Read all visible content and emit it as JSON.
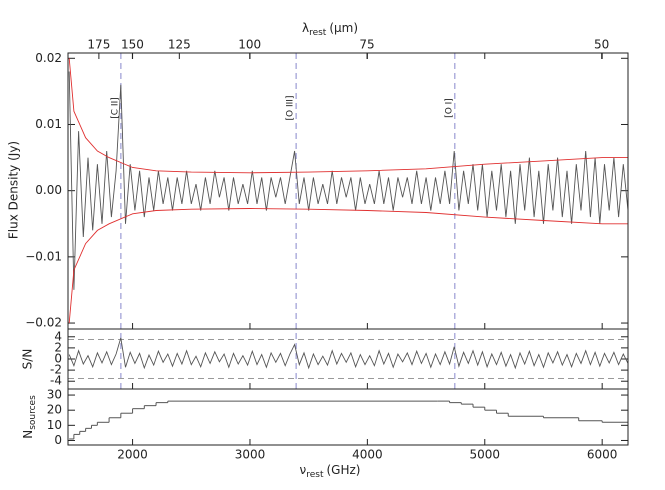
{
  "chart_data": {
    "type": "line",
    "xlim": [
      1450,
      6220
    ],
    "xticks": [
      2000,
      3000,
      4000,
      5000,
      6000
    ],
    "x2ticks": [
      {
        "value": 1713.1,
        "label": "175"
      },
      {
        "value": 1998.6,
        "label": "150"
      },
      {
        "value": 2398.3,
        "label": "125"
      },
      {
        "value": 2997.9,
        "label": "100"
      },
      {
        "value": 3997.2,
        "label": "75"
      },
      {
        "value": 5995.8,
        "label": "50"
      }
    ],
    "xlabel": {
      "symbol": "ν",
      "sub": "rest",
      "unit": "(GHz)"
    },
    "x2label": {
      "symbol": "λ",
      "sub": "rest",
      "unit": "(μm)"
    },
    "x": [
      1460,
      1500,
      1540,
      1580,
      1620,
      1660,
      1700,
      1740,
      1780,
      1820,
      1860,
      1900,
      1940,
      1980,
      2020,
      2060,
      2100,
      2140,
      2180,
      2220,
      2260,
      2300,
      2340,
      2380,
      2420,
      2460,
      2500,
      2540,
      2580,
      2620,
      2660,
      2700,
      2740,
      2780,
      2820,
      2860,
      2900,
      2940,
      2980,
      3020,
      3060,
      3100,
      3140,
      3180,
      3220,
      3260,
      3300,
      3340,
      3380,
      3420,
      3460,
      3500,
      3540,
      3580,
      3620,
      3660,
      3700,
      3740,
      3780,
      3820,
      3860,
      3900,
      3940,
      3980,
      4020,
      4060,
      4100,
      4140,
      4180,
      4220,
      4260,
      4300,
      4340,
      4380,
      4420,
      4460,
      4500,
      4540,
      4580,
      4620,
      4660,
      4700,
      4740,
      4780,
      4820,
      4860,
      4900,
      4940,
      4980,
      5020,
      5060,
      5100,
      5140,
      5180,
      5220,
      5260,
      5300,
      5340,
      5380,
      5420,
      5460,
      5500,
      5540,
      5580,
      5620,
      5660,
      5700,
      5740,
      5780,
      5820,
      5860,
      5900,
      5940,
      5980,
      6020,
      6060,
      6100,
      6140,
      6180,
      6220
    ],
    "flux": {
      "ylabel": "Flux Density (Jy)",
      "ylim": [
        -0.0209,
        0.0208
      ],
      "yticks": [
        {
          "value": -0.02,
          "label": "−0.02"
        },
        {
          "value": -0.01,
          "label": "−0.01"
        },
        {
          "value": 0,
          "label": "0.00"
        },
        {
          "value": 0.01,
          "label": "0.01"
        },
        {
          "value": 0.02,
          "label": "0.02"
        }
      ],
      "color": "#555555",
      "values": [
        0.018,
        -0.015,
        0.009,
        -0.007,
        0.005,
        -0.006,
        0.004,
        -0.005,
        0.006,
        -0.004,
        0.003,
        0.016,
        -0.005,
        0.004,
        -0.003,
        0.003,
        -0.004,
        0.002,
        -0.003,
        0.003,
        -0.002,
        0.002,
        -0.003,
        0.002,
        -0.002,
        0.003,
        -0.002,
        0.001,
        -0.003,
        0.002,
        -0.002,
        0.003,
        -0.001,
        0.002,
        -0.003,
        0.002,
        -0.002,
        0.001,
        -0.002,
        0.003,
        -0.002,
        0.002,
        -0.003,
        0.002,
        -0.001,
        0.002,
        -0.002,
        0.002,
        0.006,
        -0.002,
        0.002,
        -0.003,
        0.002,
        -0.002,
        0.001,
        -0.002,
        0.003,
        -0.002,
        0.002,
        -0.001,
        0.002,
        -0.003,
        0.002,
        -0.002,
        0.001,
        -0.002,
        0.003,
        -0.002,
        0.002,
        -0.003,
        0.002,
        -0.001,
        0.002,
        -0.002,
        0.003,
        -0.002,
        0.002,
        -0.003,
        0.002,
        -0.002,
        0.003,
        -0.002,
        0.006,
        -0.003,
        0.003,
        -0.002,
        0.004,
        -0.003,
        0.004,
        -0.004,
        0.003,
        -0.003,
        0.004,
        -0.004,
        0.003,
        -0.005,
        0.004,
        -0.003,
        0.005,
        -0.004,
        0.003,
        -0.005,
        0.004,
        -0.003,
        0.005,
        -0.004,
        0.003,
        -0.005,
        0.004,
        -0.003,
        0.006,
        -0.004,
        0.005,
        -0.005,
        0.004,
        -0.003,
        0.005,
        -0.004,
        0.004,
        -0.003
      ],
      "envelope": {
        "color": "#e03030",
        "x": [
          1460,
          1500,
          1600,
          1700,
          1800,
          2000,
          2200,
          2500,
          3000,
          3500,
          4000,
          4500,
          5000,
          5500,
          6000,
          6220
        ],
        "upper": [
          0.02,
          0.012,
          0.008,
          0.006,
          0.005,
          0.0035,
          0.003,
          0.0028,
          0.0027,
          0.0028,
          0.003,
          0.0033,
          0.004,
          0.0045,
          0.005,
          0.005
        ],
        "lower": [
          -0.02,
          -0.012,
          -0.008,
          -0.006,
          -0.005,
          -0.0035,
          -0.003,
          -0.0028,
          -0.0027,
          -0.0028,
          -0.003,
          -0.0033,
          -0.004,
          -0.0045,
          -0.005,
          -0.005
        ]
      },
      "lines": [
        {
          "label": "[C II]",
          "x": 1900.5
        },
        {
          "label": "[O III]",
          "x": 3393
        },
        {
          "label": "[O I]",
          "x": 4745
        }
      ],
      "line_color": "#8888cc"
    },
    "snr": {
      "ylabel": "S/N",
      "ylim": [
        -5.4,
        5.4
      ],
      "yticks": [
        -4,
        -2,
        0,
        2,
        4
      ],
      "color": "#555555",
      "hlines": [
        3.5,
        -3.5
      ],
      "values": [
        0.8,
        -1.2,
        1.5,
        -0.9,
        0.6,
        -1.4,
        1.1,
        -0.7,
        1.3,
        -1.0,
        0.9,
        3.8,
        -1.5,
        1.2,
        -0.8,
        1.0,
        -1.6,
        0.7,
        -1.1,
        1.4,
        -0.6,
        0.9,
        -1.3,
        1.0,
        -0.9,
        1.5,
        -1.0,
        0.5,
        -1.4,
        1.1,
        -0.8,
        1.3,
        -0.5,
        0.9,
        -1.5,
        1.0,
        -0.9,
        0.6,
        -1.1,
        1.4,
        -1.0,
        0.8,
        -1.5,
        1.1,
        -0.6,
        1.0,
        -1.2,
        0.9,
        2.6,
        -1.0,
        1.1,
        -1.6,
        0.9,
        -1.0,
        0.5,
        -1.1,
        1.5,
        -0.9,
        1.0,
        -0.6,
        1.1,
        -1.4,
        0.8,
        -1.0,
        0.6,
        -1.2,
        1.5,
        -0.9,
        1.0,
        -1.5,
        0.9,
        -0.5,
        1.1,
        -1.0,
        1.4,
        -0.8,
        1.0,
        -1.5,
        0.9,
        -1.0,
        1.3,
        -0.9,
        2.2,
        -1.3,
        1.2,
        -0.8,
        1.5,
        -1.1,
        1.3,
        -1.4,
        0.9,
        -1.0,
        1.2,
        -1.3,
        0.8,
        -1.6,
        1.1,
        -0.9,
        1.4,
        -1.2,
        0.8,
        -1.5,
        1.1,
        -0.7,
        1.3,
        -1.1,
        0.8,
        -1.4,
        1.0,
        -0.8,
        1.5,
        -1.0,
        1.2,
        -1.3,
        1.0,
        -0.7,
        1.2,
        -1.0,
        0.9,
        -0.8
      ]
    },
    "nsources": {
      "ylabel": {
        "symbol": "N",
        "sub": "sources"
      },
      "ylim": [
        -3,
        34
      ],
      "yticks": [
        0,
        10,
        20,
        30
      ],
      "color": "#555555",
      "x": [
        1460,
        1500,
        1550,
        1600,
        1650,
        1700,
        1800,
        1900,
        2000,
        2100,
        2200,
        2300,
        4600,
        4700,
        4800,
        4900,
        5000,
        5100,
        5200,
        5500,
        5800,
        6000
      ],
      "values": [
        1,
        4,
        6,
        8,
        10,
        12,
        15,
        18,
        21,
        23,
        25,
        26,
        26,
        25,
        24,
        22,
        20,
        18,
        16,
        15,
        13,
        12
      ]
    }
  }
}
